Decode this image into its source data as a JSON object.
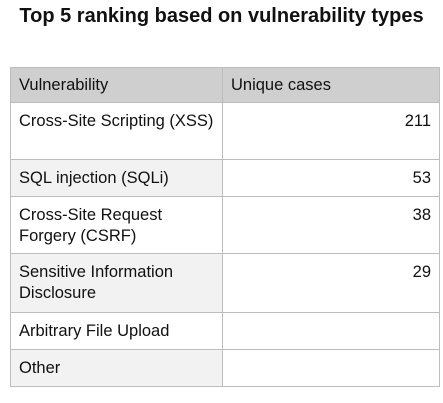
{
  "title": "Top 5 ranking based on vulnerability types",
  "table": {
    "headers": [
      "Vulnerability",
      "Unique cases"
    ],
    "rows": [
      {
        "label": "Cross-Site Scripting (XSS)",
        "value": "211"
      },
      {
        "label": "SQL injection (SQLi)",
        "value": "53"
      },
      {
        "label": "Cross-Site Request Forgery (CSRF)",
        "value": "38"
      },
      {
        "label": "Sensitive Information Disclosure",
        "value": "29"
      },
      {
        "label": "Arbitrary File Upload",
        "value": ""
      },
      {
        "label": "Other",
        "value": ""
      }
    ]
  },
  "chart_data": {
    "type": "table",
    "title": "Top 5 ranking based on vulnerability types",
    "columns": [
      "Vulnerability",
      "Unique cases"
    ],
    "categories": [
      "Cross-Site Scripting (XSS)",
      "SQL injection (SQLi)",
      "Cross-Site Request Forgery (CSRF)",
      "Sensitive Information Disclosure",
      "Arbitrary File Upload",
      "Other"
    ],
    "values": [
      211,
      53,
      38,
      29,
      null,
      null
    ]
  }
}
